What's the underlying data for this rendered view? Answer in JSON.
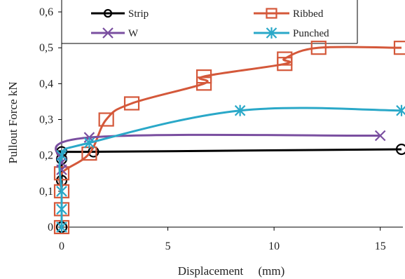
{
  "chart_data": {
    "type": "line",
    "title": "",
    "xlabel": "Displacement     (mm)",
    "ylabel": "Pullout Force  kN",
    "xlim": [
      0,
      16
    ],
    "ylim": [
      0,
      0.6
    ],
    "x_ticks": [
      "0",
      "5",
      "10",
      "15"
    ],
    "y_ticks": [
      "0",
      "0,1",
      "0,2",
      "0,3",
      "0,4",
      "0,5",
      "0,6"
    ],
    "grid": false,
    "legend_position": "top",
    "series": [
      {
        "name": "Strip",
        "color": "#000000",
        "marker": "circle",
        "points": [
          [
            0,
            0
          ],
          [
            0,
            0.13
          ],
          [
            0,
            0.19
          ],
          [
            0,
            0.21
          ],
          [
            1.5,
            0.21
          ],
          [
            16,
            0.217
          ]
        ]
      },
      {
        "name": "Ribbed",
        "color": "#d4583a",
        "marker": "square",
        "points": [
          [
            0,
            0
          ],
          [
            0,
            0.05
          ],
          [
            0,
            0.1
          ],
          [
            0,
            0.15
          ],
          [
            1.3,
            0.205
          ],
          [
            2.1,
            0.3
          ],
          [
            3.3,
            0.345
          ],
          [
            6.7,
            0.4
          ],
          [
            6.7,
            0.42
          ],
          [
            10.5,
            0.455
          ],
          [
            10.5,
            0.47
          ],
          [
            12.1,
            0.5
          ],
          [
            16,
            0.5
          ]
        ]
      },
      {
        "name": "W",
        "color": "#7a4fa0",
        "marker": "x",
        "points": [
          [
            0,
            0.16
          ],
          [
            0,
            0.18
          ],
          [
            1.3,
            0.25
          ],
          [
            15.0,
            0.255
          ]
        ]
      },
      {
        "name": "Punched",
        "color": "#2aa8c8",
        "marker": "asterisk",
        "points": [
          [
            0,
            0
          ],
          [
            0,
            0.05
          ],
          [
            0,
            0.1
          ],
          [
            0,
            0.2
          ],
          [
            1.3,
            0.235
          ],
          [
            8.4,
            0.325
          ],
          [
            16,
            0.325
          ]
        ]
      }
    ]
  },
  "legend": {
    "items": [
      {
        "label": "Strip"
      },
      {
        "label": "Ribbed"
      },
      {
        "label": "W"
      },
      {
        "label": "Punched"
      }
    ]
  }
}
